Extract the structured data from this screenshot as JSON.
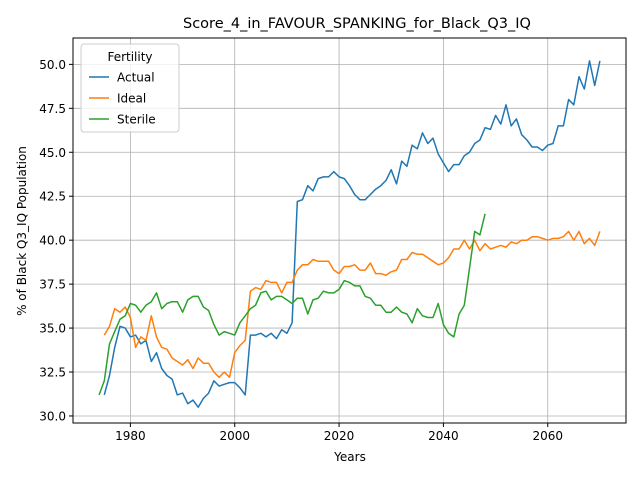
{
  "chart_data": {
    "type": "line",
    "title": "Score_4_in_FAVOUR_SPANKING_for_Black_Q3_IQ",
    "xlabel": "Years",
    "ylabel": "% of Black Q3_IQ Population",
    "xlim": [
      1969,
      2075
    ],
    "ylim": [
      29.6,
      51.5
    ],
    "xticks": [
      1980,
      2000,
      2020,
      2040,
      2060
    ],
    "xtick_labels": [
      "1980",
      "2000",
      "2020",
      "2040",
      "2060"
    ],
    "yticks": [
      30.0,
      32.5,
      35.0,
      37.5,
      40.0,
      42.5,
      45.0,
      47.5,
      50.0
    ],
    "ytick_labels": [
      "30.0",
      "32.5",
      "35.0",
      "37.5",
      "40.0",
      "42.5",
      "45.0",
      "47.5",
      "50.0"
    ],
    "grid": true,
    "legend": {
      "title": "Fertility",
      "placement": "top-left"
    },
    "series": [
      {
        "name": "Actual",
        "color": "#1f77b4",
        "x": [
          1975,
          1976,
          1977,
          1978,
          1979,
          1980,
          1981,
          1982,
          1983,
          1984,
          1985,
          1986,
          1987,
          1988,
          1989,
          1990,
          1991,
          1992,
          1993,
          1994,
          1995,
          1996,
          1997,
          1998,
          1999,
          2000,
          2001,
          2002,
          2003,
          2004,
          2005,
          2006,
          2007,
          2008,
          2009,
          2010,
          2011,
          2012,
          2013,
          2014,
          2015,
          2016,
          2017,
          2018,
          2019,
          2020,
          2021,
          2022,
          2023,
          2024,
          2025,
          2026,
          2027,
          2028,
          2029,
          2030,
          2031,
          2032,
          2033,
          2034,
          2035,
          2036,
          2037,
          2038,
          2039,
          2040,
          2041,
          2042,
          2043,
          2044,
          2045,
          2046,
          2047,
          2048,
          2049,
          2050,
          2051,
          2052,
          2053,
          2054,
          2055,
          2056,
          2057,
          2058,
          2059,
          2060,
          2061,
          2062,
          2063,
          2064,
          2065,
          2066,
          2067,
          2068,
          2069,
          2070
        ],
        "y": [
          31.2,
          32.3,
          33.9,
          35.1,
          35.0,
          34.5,
          34.6,
          34.1,
          34.3,
          33.1,
          33.6,
          32.7,
          32.3,
          32.1,
          31.2,
          31.3,
          30.7,
          30.9,
          30.5,
          31.0,
          31.3,
          32.0,
          31.7,
          31.8,
          31.9,
          31.9,
          31.6,
          31.2,
          34.6,
          34.6,
          34.7,
          34.5,
          34.7,
          34.4,
          34.9,
          34.7,
          35.3,
          42.2,
          42.3,
          43.1,
          42.8,
          43.5,
          43.6,
          43.6,
          43.9,
          43.6,
          43.5,
          43.1,
          42.6,
          42.3,
          42.3,
          42.6,
          42.9,
          43.1,
          43.4,
          44.0,
          43.2,
          44.5,
          44.2,
          45.4,
          45.2,
          46.1,
          45.5,
          45.8,
          44.9,
          44.4,
          43.9,
          44.3,
          44.3,
          44.8,
          45.0,
          45.5,
          45.7,
          46.4,
          46.3,
          47.1,
          46.6,
          47.7,
          46.5,
          46.9,
          46.0,
          45.7,
          45.3,
          45.3,
          45.1,
          45.4,
          45.5,
          46.5,
          46.5,
          48.0,
          47.7,
          49.3,
          48.6,
          50.2,
          48.8,
          50.2
        ]
      },
      {
        "name": "Ideal",
        "color": "#ff7f0e",
        "x": [
          1975,
          1976,
          1977,
          1978,
          1979,
          1980,
          1981,
          1982,
          1983,
          1984,
          1985,
          1986,
          1987,
          1988,
          1989,
          1990,
          1991,
          1992,
          1993,
          1994,
          1995,
          1996,
          1997,
          1998,
          1999,
          2000,
          2001,
          2002,
          2003,
          2004,
          2005,
          2006,
          2007,
          2008,
          2009,
          2010,
          2011,
          2012,
          2013,
          2014,
          2015,
          2016,
          2017,
          2018,
          2019,
          2020,
          2021,
          2022,
          2023,
          2024,
          2025,
          2026,
          2027,
          2028,
          2029,
          2030,
          2031,
          2032,
          2033,
          2034,
          2035,
          2036,
          2037,
          2038,
          2039,
          2040,
          2041,
          2042,
          2043,
          2044,
          2045,
          2046,
          2047,
          2048,
          2049,
          2050,
          2051,
          2052,
          2053,
          2054,
          2055,
          2056,
          2057,
          2058,
          2059,
          2060,
          2061,
          2062,
          2063,
          2064,
          2065,
          2066,
          2067,
          2068,
          2069,
          2070
        ],
        "y": [
          34.6,
          35.1,
          36.1,
          35.9,
          36.2,
          35.6,
          33.9,
          34.5,
          34.3,
          35.7,
          34.5,
          33.9,
          33.8,
          33.3,
          33.1,
          32.9,
          33.2,
          32.7,
          33.3,
          33.0,
          33.0,
          32.5,
          32.2,
          32.5,
          32.2,
          33.6,
          34.0,
          34.3,
          37.1,
          37.3,
          37.2,
          37.7,
          37.6,
          37.6,
          37.0,
          37.6,
          37.6,
          38.3,
          38.6,
          38.6,
          38.9,
          38.8,
          38.8,
          38.8,
          38.3,
          38.1,
          38.5,
          38.5,
          38.6,
          38.3,
          38.3,
          38.7,
          38.1,
          38.1,
          38.0,
          38.2,
          38.3,
          38.9,
          38.9,
          39.3,
          39.2,
          39.2,
          39.0,
          38.8,
          38.6,
          38.7,
          39.0,
          39.5,
          39.5,
          40.0,
          39.5,
          40.0,
          39.4,
          39.8,
          39.5,
          39.6,
          39.7,
          39.6,
          39.9,
          39.8,
          40.0,
          40.0,
          40.2,
          40.2,
          40.1,
          40.0,
          40.1,
          40.1,
          40.2,
          40.5,
          40.0,
          40.5,
          39.8,
          40.1,
          39.7,
          40.5
        ]
      },
      {
        "name": "Sterile",
        "color": "#2ca02c",
        "x": [
          1974,
          1975,
          1976,
          1977,
          1978,
          1979,
          1980,
          1981,
          1982,
          1983,
          1984,
          1985,
          1986,
          1987,
          1988,
          1989,
          1990,
          1991,
          1992,
          1993,
          1994,
          1995,
          1996,
          1997,
          1998,
          1999,
          2000,
          2001,
          2002,
          2003,
          2004,
          2005,
          2006,
          2007,
          2008,
          2009,
          2010,
          2011,
          2012,
          2013,
          2014,
          2015,
          2016,
          2017,
          2018,
          2019,
          2020,
          2021,
          2022,
          2023,
          2024,
          2025,
          2026,
          2027,
          2028,
          2029,
          2030,
          2031,
          2032,
          2033,
          2034,
          2035,
          2036,
          2037,
          2038,
          2039,
          2040,
          2041,
          2042,
          2043,
          2044,
          2045,
          2046,
          2047,
          2048
        ],
        "y": [
          31.2,
          32.0,
          34.1,
          34.8,
          35.5,
          35.7,
          36.4,
          36.3,
          35.9,
          36.3,
          36.5,
          37.0,
          36.1,
          36.4,
          36.5,
          36.5,
          35.9,
          36.6,
          36.8,
          36.8,
          36.2,
          36.0,
          35.2,
          34.6,
          34.8,
          34.7,
          34.6,
          35.3,
          35.7,
          36.1,
          36.3,
          37.0,
          37.1,
          36.6,
          36.8,
          36.8,
          36.6,
          36.4,
          36.7,
          36.7,
          35.8,
          36.6,
          36.7,
          37.1,
          37.0,
          37.0,
          37.2,
          37.7,
          37.6,
          37.4,
          37.4,
          36.8,
          36.7,
          36.3,
          36.3,
          35.9,
          35.9,
          36.2,
          35.9,
          35.8,
          35.3,
          36.1,
          35.7,
          35.6,
          35.6,
          36.4,
          35.2,
          34.7,
          34.5,
          35.8,
          36.3,
          38.4,
          40.5,
          40.3,
          41.5
        ]
      }
    ]
  }
}
